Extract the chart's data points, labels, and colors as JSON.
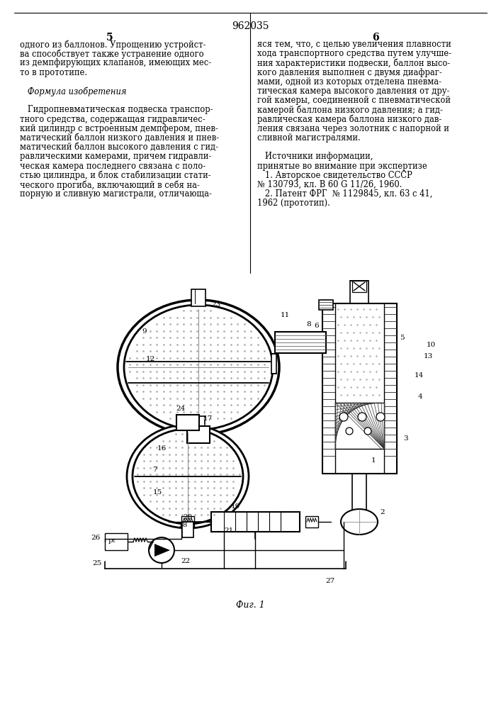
{
  "title": "962035",
  "page_numbers": [
    "5",
    "6"
  ],
  "left_col_text": [
    "одного из баллонов. Упрощению устройст-",
    "ва способствует также устранение одного",
    "из демпфирующих клапанов, имеющих мес-",
    "то в прототипе.",
    "",
    "   Формула изобретения",
    "",
    "   Гидропневматическая подвеска транспор-",
    "тного средства, содержащая гидравличес-",
    "кий цилиндр с встроенным демпфером, пнев-",
    "матический баллон низкого давления и пнев-",
    "матический баллон высокого давления с гид-",
    "равлическими камерами, причем гидравли-",
    "ческая камера последнего связана с поло-",
    "стью цилиндра, и блок стабилизации стати-",
    "ческого прогиба, включающий в себя на-",
    "порную и сливную магистрали, отличающа-"
  ],
  "right_col_text": [
    "яся тем, что, с целью увеличения плавности",
    "хода транспортного средства путем улучше-",
    "ния характеристики подвески, баллон высо-",
    "кого давления выполнен с двумя диафраг-",
    "мами, одной из которых отделена пневма-",
    "тическая камера высокого давления от дру-",
    "гой камеры, соединенной с пневматической",
    "камерой баллона низкого давления; а гид-",
    "равлическая камера баллона низкого дав-",
    "ления связана через золотник с напорной и",
    "сливной магистралями.",
    "",
    "   Источники информации,",
    "принятые во внимание при экспертизе",
    "   1. Авторское свидетельство СССР",
    "№ 130793, кл. В 60 G 11/26, 1960.",
    "   2. Патент ФРГ  № 1129845, кл. 63 с 41,",
    "1962 (прототип)."
  ],
  "fig_label": "Фиг. 1",
  "background_color": "#ffffff"
}
